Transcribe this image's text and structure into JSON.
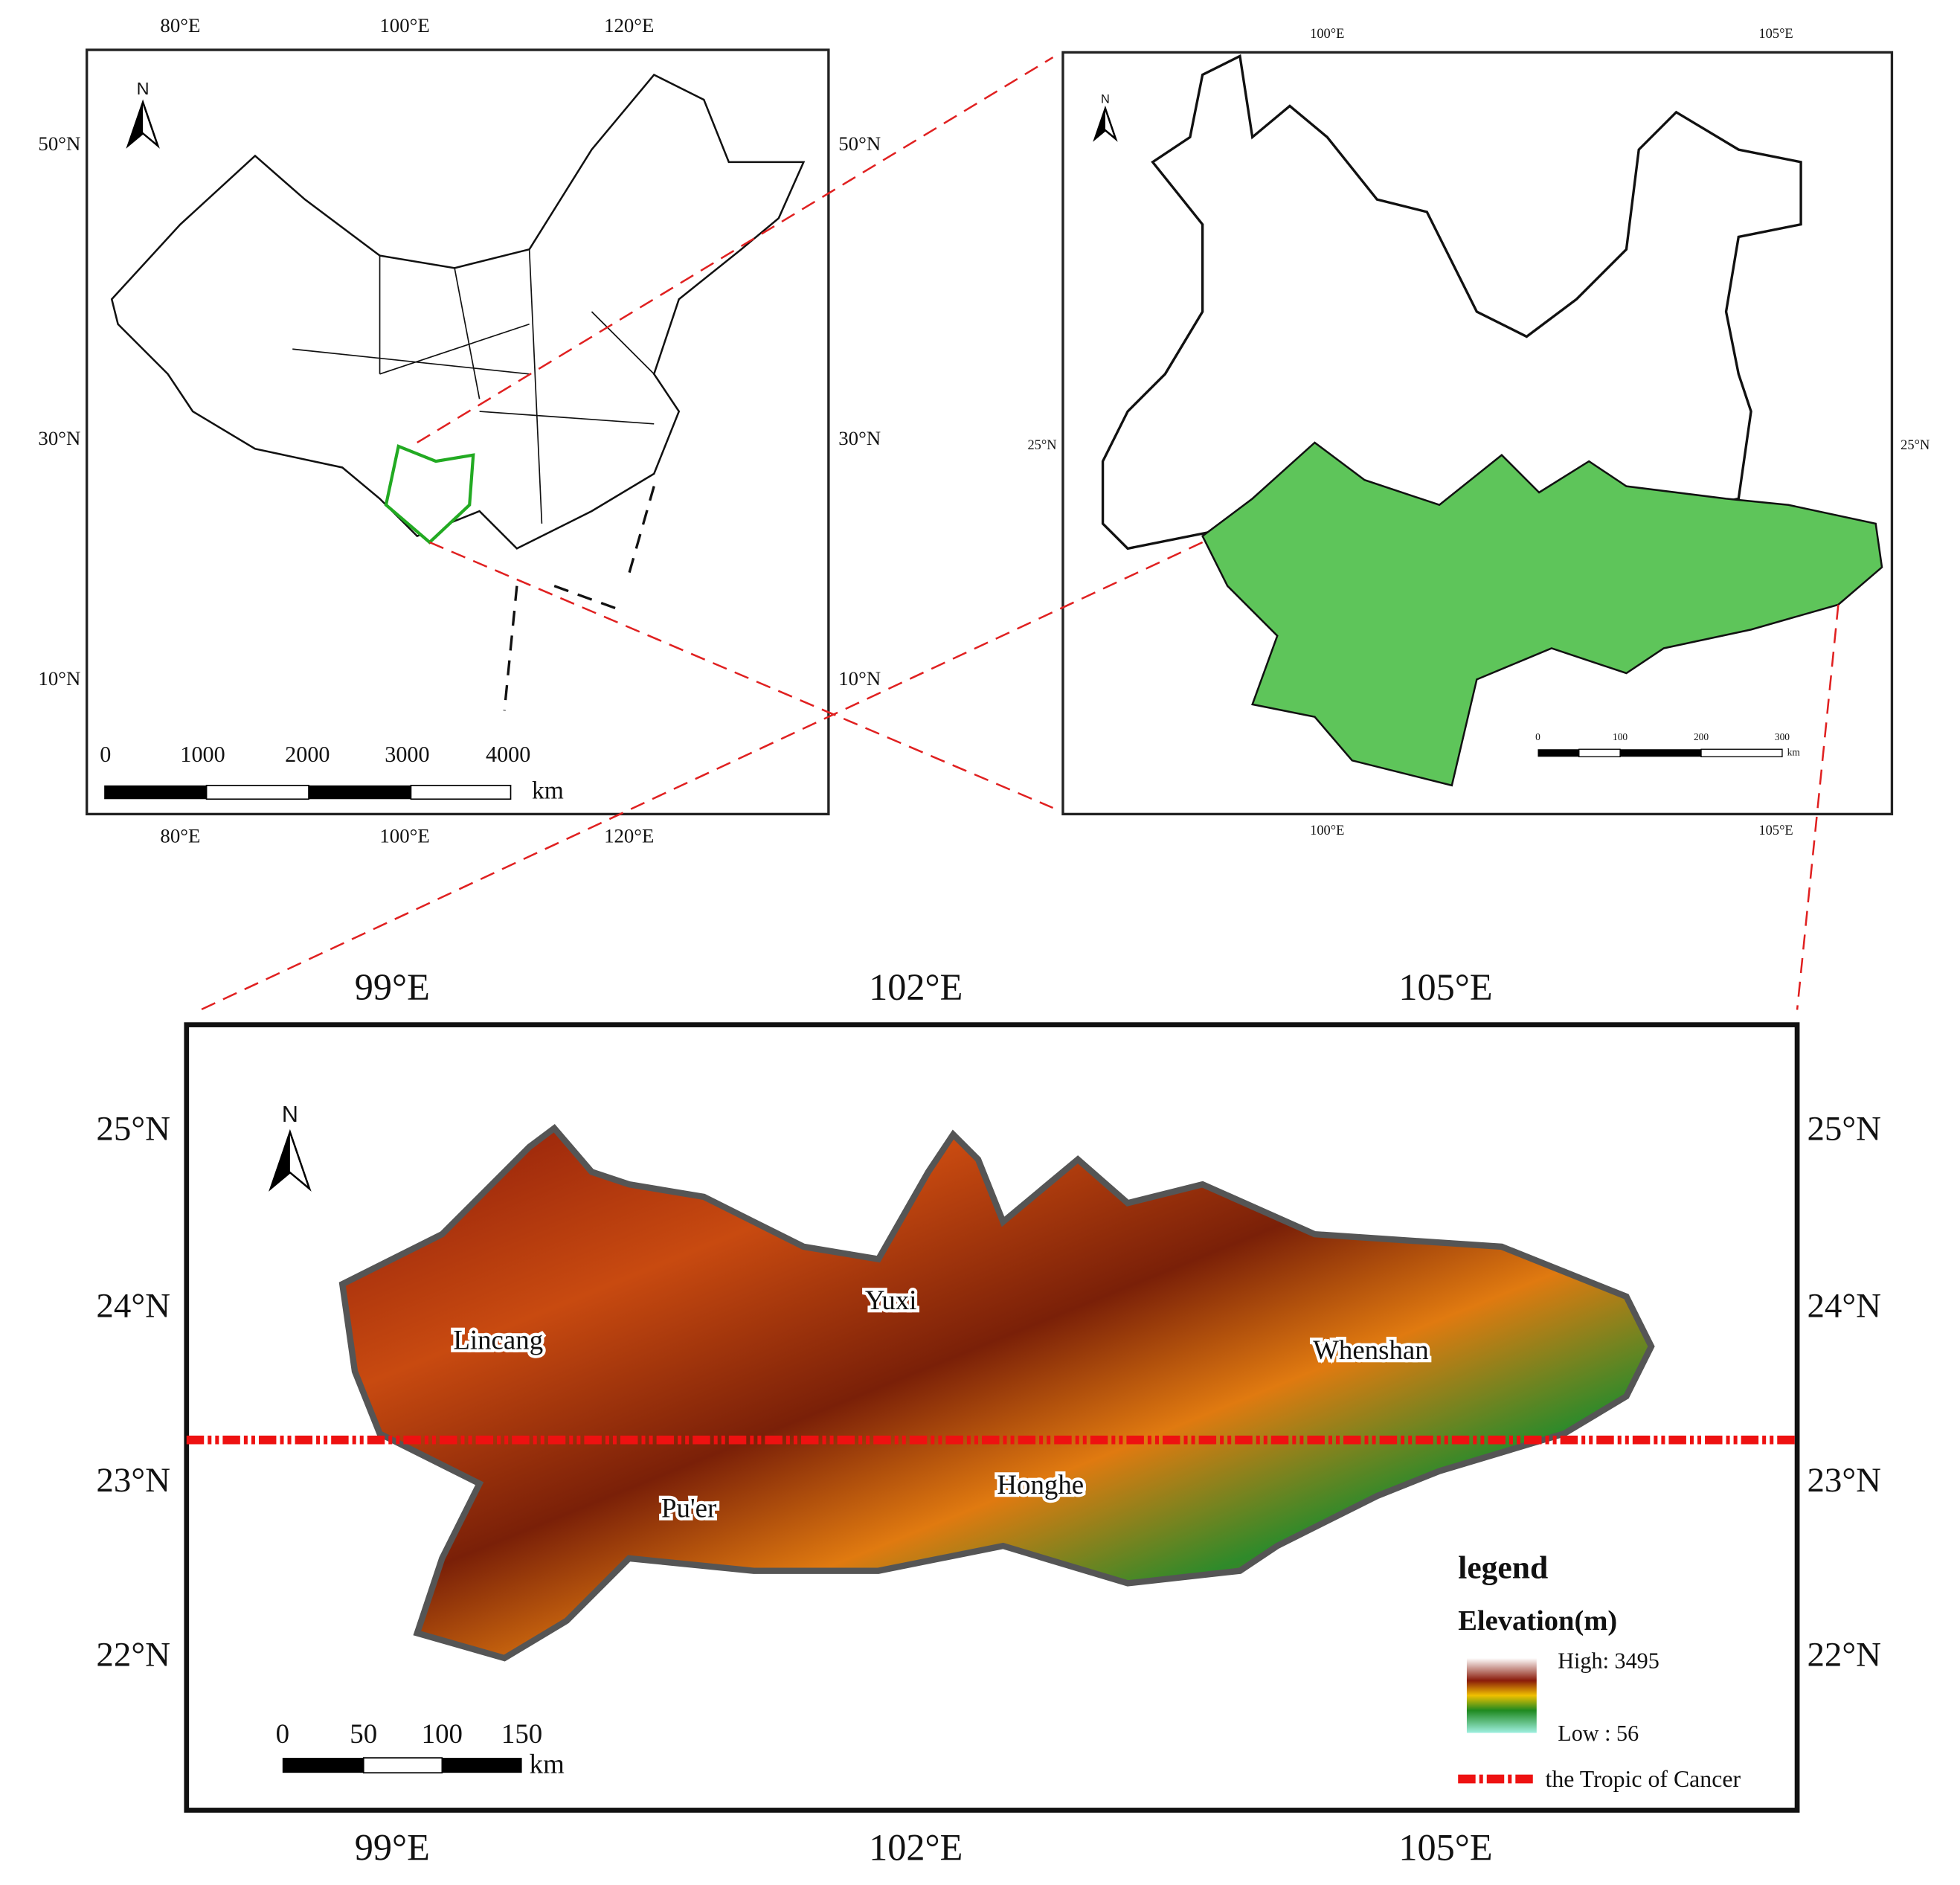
{
  "map_china": {
    "lon_ticks": [
      "80°E",
      "100°E",
      "120°E"
    ],
    "lat_ticks": [
      "50°N",
      "30°N",
      "10°N"
    ],
    "north": "N",
    "scale": [
      "0",
      "1000",
      "2000",
      "3000",
      "4000"
    ],
    "scale_unit": "km"
  },
  "map_yunnan": {
    "lon_ticks": [
      "100°E",
      "105°E"
    ],
    "lat_ticks": [
      "25°N"
    ],
    "north": "N",
    "scale": [
      "0",
      "100",
      "200",
      "300"
    ],
    "scale_unit": "km"
  },
  "map_study": {
    "lon_ticks": [
      "99°E",
      "102°E",
      "105°E"
    ],
    "lat_ticks": [
      "25°N",
      "24°N",
      "23°N",
      "22°N"
    ],
    "north": "N",
    "regions": [
      "Lincang",
      "Yuxi",
      "Whenshan",
      "Pu'er",
      "Honghe"
    ],
    "scale": [
      "0",
      "50",
      "100",
      "150"
    ],
    "scale_unit": "km",
    "legend": {
      "title": "legend",
      "subtitle": "Elevation(m)",
      "high": "High: 3495",
      "low": "Low : 56",
      "tropic": "the Tropic of Cancer"
    }
  }
}
